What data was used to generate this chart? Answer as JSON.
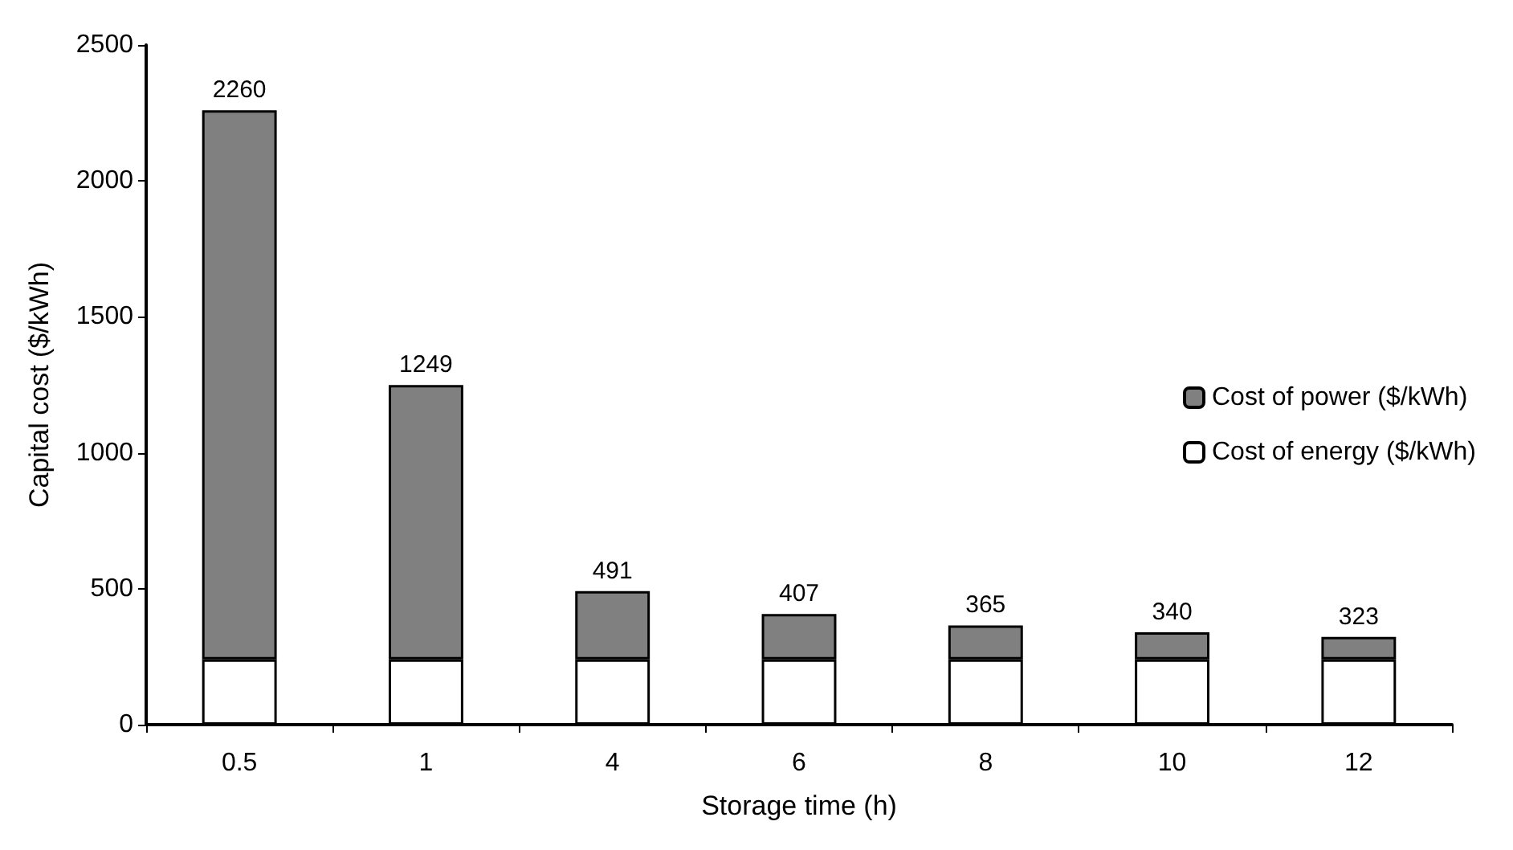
{
  "chart_data": {
    "type": "bar",
    "stacked": true,
    "xlabel": "Storage time (h)",
    "ylabel": "Capital cost ($/kWh)",
    "categories": [
      "0.5",
      "1",
      "4",
      "6",
      "8",
      "10",
      "12"
    ],
    "series": [
      {
        "name": "Cost of energy ($/kWh)",
        "color": "#ffffff",
        "values": [
          240,
          240,
          240,
          240,
          240,
          240,
          240
        ]
      },
      {
        "name": "Cost of power ($/kWh)",
        "color": "#808080",
        "values": [
          2020,
          1009,
          251,
          167,
          125,
          100,
          83
        ]
      }
    ],
    "totals": [
      "2260",
      "1249",
      "491",
      "407",
      "365",
      "340",
      "323"
    ],
    "ylim": [
      0,
      2500
    ],
    "yticks": [
      0,
      500,
      1000,
      1500,
      2000,
      2500
    ],
    "grid": false,
    "legend": "right"
  }
}
